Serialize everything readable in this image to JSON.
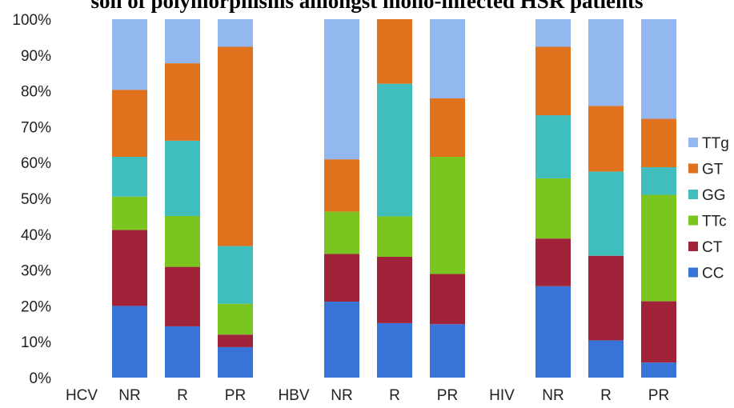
{
  "chart_data": {
    "type": "bar",
    "stacked": true,
    "title": "son of polymorphisms amongst mono-infected HSR patients",
    "xlabel": "",
    "ylabel": "",
    "ylim": [
      0,
      100
    ],
    "ytick_labels": [
      "0%",
      "10%",
      "20%",
      "30%",
      "40%",
      "50%",
      "60%",
      "70%",
      "80%",
      "90%",
      "100%"
    ],
    "group_labels": [
      "HCV",
      "HBV",
      "HIV"
    ],
    "categories": [
      "NR",
      "R",
      "PR",
      "NR",
      "R",
      "PR",
      "NR",
      "R",
      "PR"
    ],
    "legend_position": "right",
    "series": [
      {
        "name": "CC",
        "color": "#3874d8",
        "values": [
          20,
          14.3,
          8.5,
          21.2,
          15.2,
          14.9,
          25.5,
          10.4,
          4.2
        ]
      },
      {
        "name": "CT",
        "color": "#a0233a",
        "values": [
          21.2,
          16.6,
          3.5,
          13.3,
          18.5,
          14.0,
          13.3,
          23.6,
          17.1
        ]
      },
      {
        "name": "TTc",
        "color": "#7ac520",
        "values": [
          9.3,
          14.2,
          8.6,
          11.8,
          11.3,
          32.7,
          16.8,
          0,
          29.7
        ]
      },
      {
        "name": "GG",
        "color": "#40bdbd",
        "values": [
          11.1,
          21.0,
          16.1,
          0,
          37.0,
          0,
          17.6,
          23.5,
          7.7
        ]
      },
      {
        "name": "GT",
        "color": "#e0721e",
        "values": [
          18.7,
          21.6,
          55.6,
          14.6,
          18.0,
          16.3,
          19.1,
          18.3,
          13.5
        ]
      },
      {
        "name": "TTg",
        "color": "#93b8f0",
        "values": [
          19.7,
          12.3,
          7.7,
          39.1,
          0,
          22.1,
          7.7,
          24.2,
          27.8
        ]
      }
    ]
  }
}
